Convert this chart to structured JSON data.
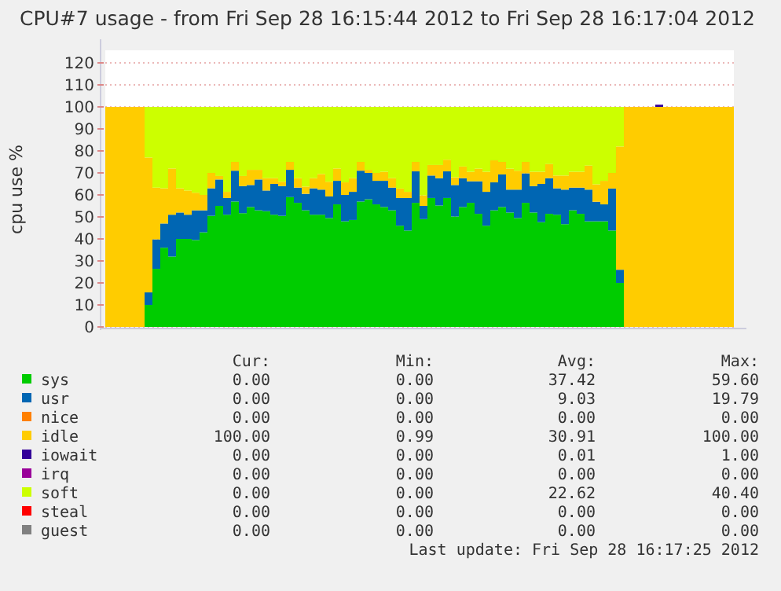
{
  "chart_data": {
    "type": "bar",
    "stacked": true,
    "title": "CPU#7 usage - from Fri Sep 28 16:15:44 2012 to Fri Sep 28 16:17:04 2012",
    "ylabel": "cpu use %",
    "categories": [
      null,
      null,
      null,
      null,
      null,
      null,
      null,
      null,
      null,
      null,
      null,
      null,
      null,
      null,
      null,
      null,
      null,
      null,
      null,
      null,
      null,
      null,
      null,
      null,
      null,
      null,
      null,
      null,
      null,
      null,
      null,
      null,
      null,
      null,
      null,
      null,
      null,
      null,
      null,
      null,
      null,
      null,
      null,
      null,
      null,
      null,
      null,
      null,
      null,
      null,
      null,
      null,
      null,
      null,
      null,
      null,
      null,
      null,
      null,
      null,
      null,
      null,
      null,
      null,
      null,
      null,
      null,
      null,
      null,
      null,
      null,
      null,
      null,
      null,
      null,
      null,
      null,
      null,
      null,
      null
    ],
    "ylim": [
      0,
      125
    ],
    "yticks": [
      0,
      10,
      20,
      30,
      40,
      50,
      60,
      70,
      80,
      90,
      100,
      110,
      120
    ],
    "grid": "y",
    "legend": "bottom",
    "series": [
      {
        "name": "sys",
        "color": "#00cc00",
        "values": [
          0,
          0,
          0,
          0,
          0,
          10,
          26.4,
          36,
          32,
          40,
          40,
          39.5,
          43,
          50.5,
          55,
          51,
          57,
          51.7,
          54.5,
          53,
          52.6,
          51,
          50.5,
          59,
          56.4,
          53,
          51,
          51,
          49.5,
          55.7,
          48,
          48.6,
          57,
          58,
          55.7,
          54.5,
          53,
          46,
          43.8,
          56.4,
          49,
          58.6,
          55.2,
          58.6,
          50.2,
          54.5,
          56.4,
          51.4,
          46,
          53,
          54.5,
          52,
          49.5,
          56.4,
          52,
          47.6,
          51.4,
          51,
          46.7,
          53,
          51.4,
          48,
          48,
          48,
          43.8,
          20,
          0,
          0,
          0,
          0,
          0,
          0,
          0,
          0,
          0,
          0,
          0,
          0,
          0,
          0
        ]
      },
      {
        "name": "usr",
        "color": "#0066b3",
        "values": [
          0,
          0,
          0,
          0,
          0,
          5.7,
          13.4,
          11,
          19,
          12,
          11,
          13.5,
          10,
          12.5,
          12,
          7.6,
          14,
          12.3,
          10,
          14,
          9.4,
          14,
          13.5,
          12.4,
          6.9,
          7.5,
          12,
          11.4,
          9.8,
          10.7,
          12,
          12.8,
          14,
          12,
          10.7,
          11.9,
          10.3,
          12.6,
          14.8,
          14.3,
          6,
          10.2,
          12.4,
          12.1,
          14.3,
          13.1,
          9.8,
          14.8,
          15.4,
          12.7,
          14.8,
          10.4,
          12.9,
          13.4,
          12,
          17.4,
          16.2,
          12,
          15.7,
          10.3,
          11.9,
          14.4,
          8.9,
          7.7,
          19.1,
          6,
          0,
          0,
          0,
          0,
          0,
          0,
          0,
          0,
          0,
          0,
          0,
          0,
          0,
          0
        ]
      },
      {
        "name": "nice",
        "color": "#ff8000",
        "values": [
          0,
          0,
          0,
          0,
          0,
          0,
          0,
          0,
          0,
          0,
          0,
          0,
          0,
          0,
          0,
          0,
          0,
          0,
          0,
          0,
          0,
          0,
          0,
          0,
          0,
          0,
          0,
          0,
          0,
          0,
          0,
          0,
          0,
          0,
          0,
          0,
          0,
          0,
          0,
          0,
          0,
          0,
          0,
          0,
          0,
          0,
          0,
          0,
          0,
          0,
          0,
          0,
          0,
          0,
          0,
          0,
          0,
          0,
          0,
          0,
          0,
          0,
          0,
          0,
          0,
          0,
          0,
          0,
          0,
          0,
          0,
          0,
          0,
          0,
          0,
          0,
          0,
          0,
          0,
          0
        ]
      },
      {
        "name": "idle",
        "color": "#ffcc00",
        "values": [
          100,
          100,
          100,
          100,
          100,
          61.3,
          23.5,
          16,
          21,
          11,
          11,
          8,
          7,
          7,
          1.6,
          2.8,
          4,
          4.6,
          6.9,
          4.4,
          5.6,
          2.6,
          2,
          3.6,
          4.3,
          3.3,
          4.6,
          7.1,
          6.7,
          5.6,
          5.7,
          6.2,
          4,
          1.4,
          3.6,
          4.1,
          4.3,
          4.3,
          2.8,
          4.3,
          4.8,
          4.8,
          6,
          5.3,
          3.5,
          5.3,
          4.3,
          5.7,
          9.1,
          10,
          5.7,
          9.5,
          8.6,
          5.2,
          6.5,
          5.5,
          6.4,
          5.8,
          6.4,
          7.2,
          7.2,
          10.9,
          7.9,
          10.7,
          7.1,
          56,
          100,
          100,
          100,
          100,
          100,
          100,
          100,
          100,
          100,
          100,
          100,
          100,
          100,
          100
        ]
      },
      {
        "name": "iowait",
        "color": "#330099",
        "values": [
          0,
          0,
          0,
          0,
          0,
          0,
          0,
          0,
          0,
          0,
          0,
          0,
          0,
          0,
          0,
          0,
          0,
          0,
          0,
          0,
          0,
          0,
          0,
          0,
          0,
          0,
          0,
          0,
          0,
          0,
          0,
          0,
          0,
          0,
          0,
          0,
          0,
          0,
          0,
          0,
          0,
          0,
          0,
          0,
          0,
          0,
          0,
          0,
          0,
          0,
          0,
          0,
          0,
          0,
          0,
          0,
          0,
          0,
          0,
          0,
          0,
          0,
          0,
          0,
          0,
          0,
          0,
          0,
          0,
          0,
          1,
          0,
          0,
          0,
          0,
          0,
          0,
          0,
          0,
          0
        ]
      },
      {
        "name": "irq",
        "color": "#990099",
        "values": [
          0,
          0,
          0,
          0,
          0,
          0,
          0,
          0,
          0,
          0,
          0,
          0,
          0,
          0,
          0,
          0,
          0,
          0,
          0,
          0,
          0,
          0,
          0,
          0,
          0,
          0,
          0,
          0,
          0,
          0,
          0,
          0,
          0,
          0,
          0,
          0,
          0,
          0,
          0,
          0,
          0,
          0,
          0,
          0,
          0,
          0,
          0,
          0,
          0,
          0,
          0,
          0,
          0,
          0,
          0,
          0,
          0,
          0,
          0,
          0,
          0,
          0,
          0,
          0,
          0,
          0,
          0,
          0,
          0,
          0,
          0,
          0,
          0,
          0,
          0,
          0,
          0,
          0,
          0,
          0
        ]
      },
      {
        "name": "soft",
        "color": "#ccff00",
        "values": [
          0,
          0,
          0,
          0,
          0,
          23,
          36.7,
          37,
          28,
          37,
          38,
          39,
          40,
          30,
          31.4,
          38.6,
          25,
          31.4,
          28.6,
          28.6,
          32.4,
          32.4,
          34,
          25,
          32.4,
          36.2,
          32.4,
          30.5,
          34,
          28,
          34.3,
          32.4,
          25,
          28.6,
          30,
          29.5,
          32.4,
          37.1,
          38.6,
          25,
          40.2,
          26.4,
          26.4,
          24,
          32,
          27.1,
          29.5,
          28.1,
          29.5,
          24.3,
          25,
          28.1,
          29,
          25,
          29.5,
          29.5,
          26,
          31.2,
          31.2,
          29.5,
          29.5,
          26.7,
          35.2,
          33.6,
          30,
          18,
          0,
          0,
          0,
          0,
          0,
          0,
          0,
          0,
          0,
          0,
          0,
          0,
          0,
          0
        ]
      },
      {
        "name": "steal",
        "color": "#ff0000",
        "values": [
          0,
          0,
          0,
          0,
          0,
          0,
          0,
          0,
          0,
          0,
          0,
          0,
          0,
          0,
          0,
          0,
          0,
          0,
          0,
          0,
          0,
          0,
          0,
          0,
          0,
          0,
          0,
          0,
          0,
          0,
          0,
          0,
          0,
          0,
          0,
          0,
          0,
          0,
          0,
          0,
          0,
          0,
          0,
          0,
          0,
          0,
          0,
          0,
          0,
          0,
          0,
          0,
          0,
          0,
          0,
          0,
          0,
          0,
          0,
          0,
          0,
          0,
          0,
          0,
          0,
          0,
          0,
          0,
          0,
          0,
          0,
          0,
          0,
          0,
          0,
          0,
          0,
          0,
          0,
          0
        ]
      },
      {
        "name": "guest",
        "color": "#808080",
        "values": [
          0,
          0,
          0,
          0,
          0,
          0,
          0,
          0,
          0,
          0,
          0,
          0,
          0,
          0,
          0,
          0,
          0,
          0,
          0,
          0,
          0,
          0,
          0,
          0,
          0,
          0,
          0,
          0,
          0,
          0,
          0,
          0,
          0,
          0,
          0,
          0,
          0,
          0,
          0,
          0,
          0,
          0,
          0,
          0,
          0,
          0,
          0,
          0,
          0,
          0,
          0,
          0,
          0,
          0,
          0,
          0,
          0,
          0,
          0,
          0,
          0,
          0,
          0,
          0,
          0,
          0,
          0,
          0,
          0,
          0,
          0,
          0,
          0,
          0,
          0,
          0,
          0,
          0,
          0,
          0
        ]
      }
    ],
    "annotations": [
      "Cur:",
      "Min:",
      "Avg:",
      "Max:",
      "0.00",
      "0.00",
      "37.42",
      "59.60",
      "0.00",
      "0.00",
      "9.03",
      "19.79",
      "0.00",
      "0.00",
      "0.00",
      "0.00",
      "100.00",
      "0.99",
      "30.91",
      "100.00",
      "0.00",
      "0.00",
      "0.01",
      "1.00",
      "0.00",
      "0.00",
      "0.00",
      "0.00",
      "0.00",
      "0.00",
      "22.62",
      "40.40",
      "0.00",
      "0.00",
      "0.00",
      "0.00",
      "0.00",
      "0.00",
      "0.00",
      "0.00",
      "Last update: Fri Sep 28 16:17:25 2012"
    ]
  }
}
